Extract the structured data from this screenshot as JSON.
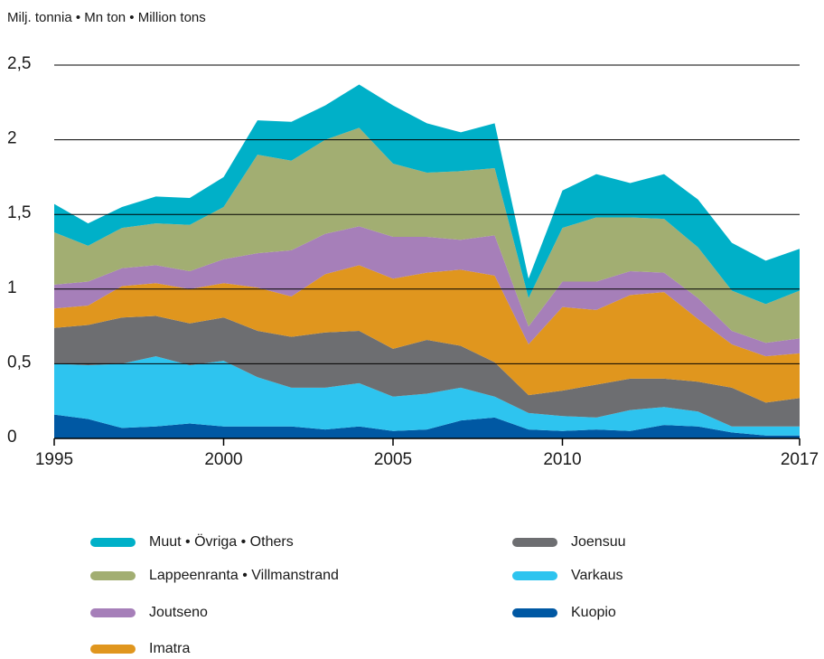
{
  "chart_data": {
    "type": "stacked_area",
    "y_label": "Milj. tonnia • Mn ton • Million tons",
    "x": [
      1995,
      1996,
      1997,
      1998,
      1999,
      2000,
      2001,
      2002,
      2003,
      2004,
      2005,
      2006,
      2007,
      2008,
      2009,
      2010,
      2011,
      2012,
      2013,
      2014,
      2015,
      2016,
      2017
    ],
    "xlim": [
      1995,
      2017
    ],
    "xticks": [
      1995,
      2000,
      2005,
      2010,
      2017
    ],
    "ylim": [
      0,
      2.5
    ],
    "yticks": [
      0,
      {
        "value": 0.5,
        "label": "0,5"
      },
      1,
      {
        "value": 1.5,
        "label": "1,5"
      },
      2,
      {
        "value": 2.5,
        "label": "2,5"
      }
    ],
    "grid": true,
    "series": [
      {
        "name": "Kuopio",
        "color": "#0058a3",
        "values": [
          0.16,
          0.13,
          0.07,
          0.08,
          0.1,
          0.08,
          0.08,
          0.08,
          0.06,
          0.08,
          0.05,
          0.06,
          0.12,
          0.14,
          0.06,
          0.05,
          0.06,
          0.05,
          0.09,
          0.08,
          0.04,
          0.02,
          0.02
        ]
      },
      {
        "name": "Varkaus",
        "color": "#2ec4ef",
        "values": [
          0.34,
          0.36,
          0.43,
          0.47,
          0.39,
          0.44,
          0.33,
          0.26,
          0.28,
          0.29,
          0.23,
          0.24,
          0.22,
          0.14,
          0.11,
          0.1,
          0.08,
          0.14,
          0.12,
          0.1,
          0.04,
          0.06,
          0.06
        ]
      },
      {
        "name": "Joensuu",
        "color": "#6d6e71",
        "values": [
          0.24,
          0.27,
          0.31,
          0.27,
          0.28,
          0.29,
          0.31,
          0.34,
          0.37,
          0.35,
          0.32,
          0.36,
          0.28,
          0.23,
          0.12,
          0.17,
          0.22,
          0.21,
          0.19,
          0.2,
          0.26,
          0.16,
          0.19
        ]
      },
      {
        "name": "Imatra",
        "color": "#e0961e",
        "values": [
          0.13,
          0.13,
          0.21,
          0.22,
          0.23,
          0.23,
          0.29,
          0.27,
          0.39,
          0.44,
          0.47,
          0.45,
          0.51,
          0.58,
          0.34,
          0.56,
          0.5,
          0.56,
          0.58,
          0.42,
          0.29,
          0.31,
          0.3
        ]
      },
      {
        "name": "Joutseno",
        "color": "#a67fb9",
        "values": [
          0.16,
          0.16,
          0.12,
          0.12,
          0.12,
          0.16,
          0.23,
          0.31,
          0.27,
          0.26,
          0.28,
          0.24,
          0.2,
          0.27,
          0.12,
          0.17,
          0.19,
          0.16,
          0.13,
          0.14,
          0.09,
          0.09,
          0.1
        ]
      },
      {
        "name": "Lappeenranta • Villmanstrand",
        "color": "#a2ae72",
        "values": [
          0.35,
          0.24,
          0.27,
          0.28,
          0.31,
          0.35,
          0.66,
          0.6,
          0.63,
          0.66,
          0.49,
          0.43,
          0.46,
          0.45,
          0.19,
          0.36,
          0.43,
          0.36,
          0.36,
          0.34,
          0.27,
          0.26,
          0.32
        ]
      },
      {
        "name": "Muut • Övriga • Others",
        "color": "#00b0c8",
        "values": [
          0.19,
          0.15,
          0.14,
          0.18,
          0.18,
          0.2,
          0.23,
          0.26,
          0.23,
          0.29,
          0.39,
          0.33,
          0.26,
          0.3,
          0.13,
          0.25,
          0.29,
          0.23,
          0.3,
          0.32,
          0.32,
          0.29,
          0.28
        ]
      }
    ]
  }
}
